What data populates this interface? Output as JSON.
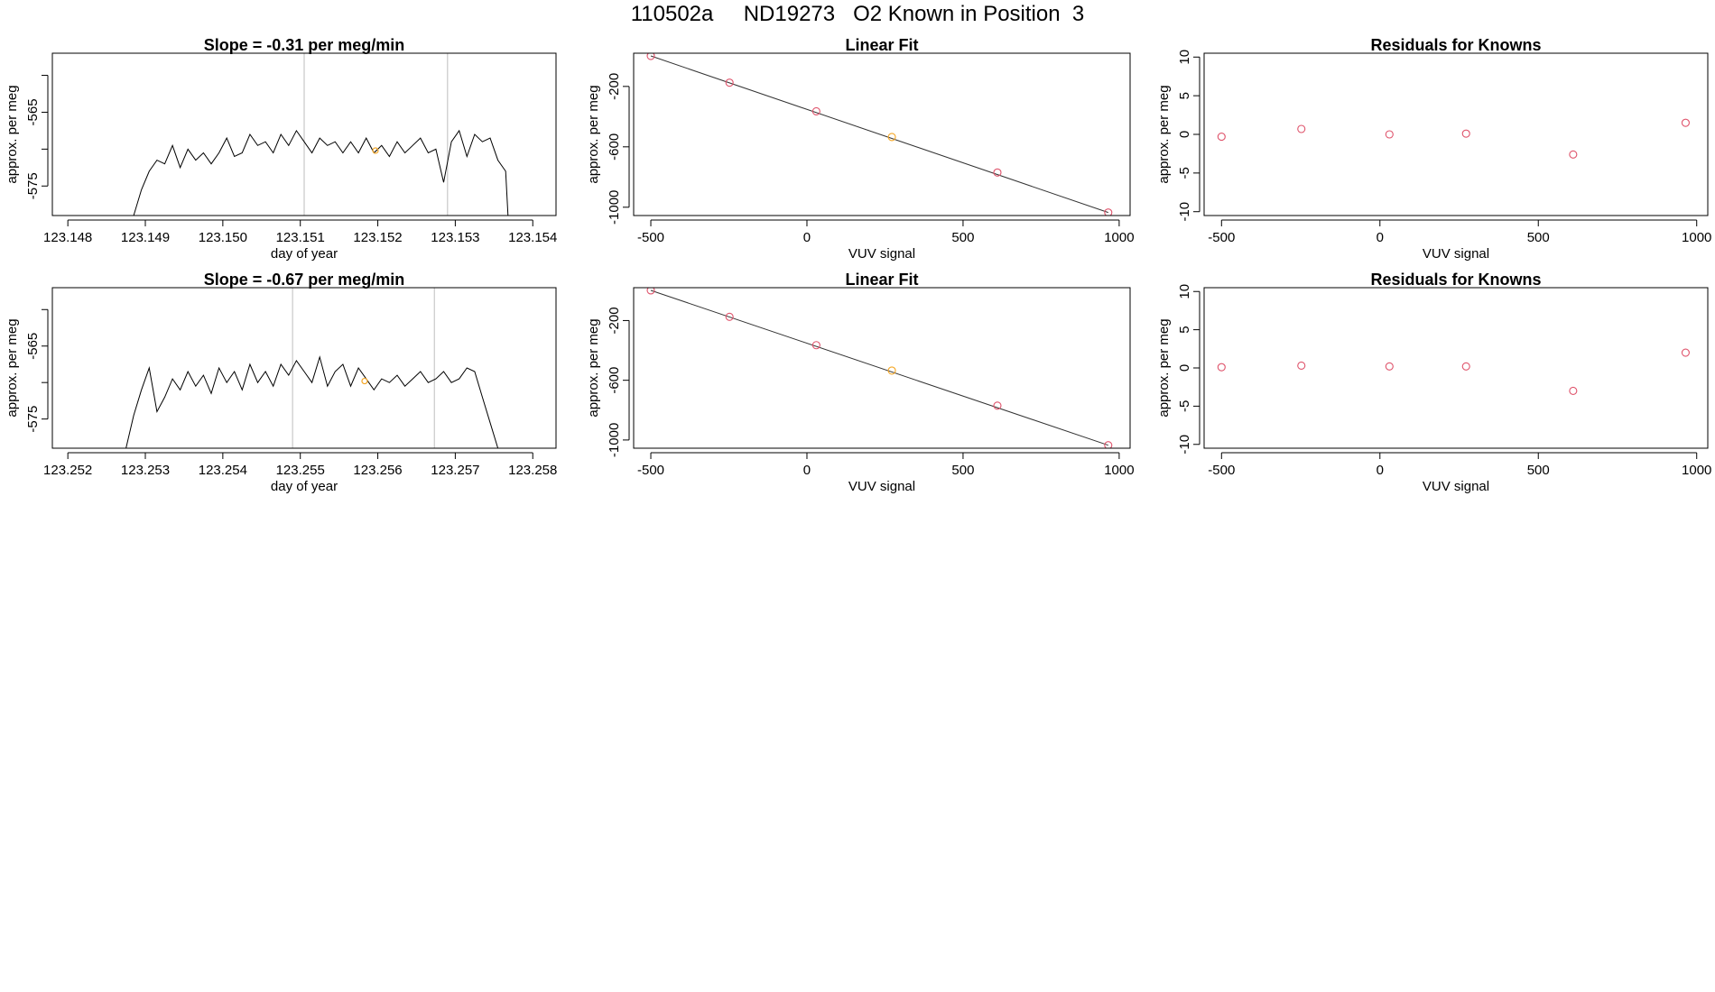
{
  "main_title": "110502a     ND19273   O2 Known in Position  3",
  "colors": {
    "line": "#000000",
    "grid": "#bebebe",
    "point_red": "#df536b",
    "point_orange": "#f5a623"
  },
  "chart_data": [
    {
      "id": "timeseries-1",
      "type": "line",
      "title": "Slope =  -0.31  per meg/min",
      "xlabel": "day of year",
      "ylabel": "approx. per meg",
      "xlim": [
        123.1478,
        123.1543
      ],
      "ylim": [
        -579,
        -557
      ],
      "xticks": [
        {
          "v": 123.148,
          "label": "123.148"
        },
        {
          "v": 123.149,
          "label": "123.149"
        },
        {
          "v": 123.15,
          "label": "123.150"
        },
        {
          "v": 123.151,
          "label": "123.151"
        },
        {
          "v": 123.152,
          "label": "123.152"
        },
        {
          "v": 123.153,
          "label": "123.153"
        },
        {
          "v": 123.154,
          "label": "123.154"
        }
      ],
      "yticks": [
        {
          "v": -560,
          "label": ""
        },
        {
          "v": -565,
          "label": "-565"
        },
        {
          "v": -570,
          "label": ""
        },
        {
          "v": -575,
          "label": "-575"
        }
      ],
      "vlines": [
        123.15105,
        123.1529
      ],
      "marker": {
        "x": 123.15197,
        "y": -570.2
      },
      "x": [
        123.14885,
        123.14895,
        123.14905,
        123.14915,
        123.14925,
        123.14935,
        123.14945,
        123.14955,
        123.14965,
        123.14975,
        123.14985,
        123.14995,
        123.15005,
        123.15015,
        123.15025,
        123.15035,
        123.15045,
        123.15055,
        123.15065,
        123.15075,
        123.15085,
        123.15095,
        123.15105,
        123.15115,
        123.15125,
        123.15135,
        123.15145,
        123.15155,
        123.15165,
        123.15175,
        123.15185,
        123.15195,
        123.15205,
        123.15215,
        123.15225,
        123.15235,
        123.15245,
        123.15255,
        123.15265,
        123.15275,
        123.15285,
        123.15295,
        123.15305,
        123.15315,
        123.15325,
        123.15335,
        123.15345,
        123.15355,
        123.15365,
        123.15368
      ],
      "y": [
        -579.0,
        -575.5,
        -573.0,
        -571.5,
        -572.0,
        -569.5,
        -572.5,
        -570.0,
        -571.5,
        -570.5,
        -572.0,
        -570.5,
        -568.5,
        -571.0,
        -570.5,
        -568.0,
        -569.5,
        -569.0,
        -570.5,
        -568.0,
        -569.5,
        -567.5,
        -569.0,
        -570.5,
        -568.5,
        -569.5,
        -569.0,
        -570.5,
        -569.0,
        -570.5,
        -568.5,
        -570.5,
        -569.5,
        -571.0,
        -569.0,
        -570.5,
        -569.5,
        -568.5,
        -570.5,
        -570.0,
        -574.5,
        -569.0,
        -567.5,
        -571.0,
        -568.0,
        -569.0,
        -568.5,
        -571.5,
        -573.0,
        -579.0
      ]
    },
    {
      "id": "linear-fit-1",
      "type": "scatter",
      "title": "Linear Fit",
      "xlabel": "VUV signal",
      "ylabel": "approx. per meg",
      "xlim": [
        -555,
        1035
      ],
      "ylim": [
        -1055,
        20
      ],
      "xticks": [
        {
          "v": -500,
          "label": "-500"
        },
        {
          "v": 0,
          "label": "0"
        },
        {
          "v": 500,
          "label": "500"
        },
        {
          "v": 1000,
          "label": "1000"
        }
      ],
      "yticks": [
        {
          "v": -200,
          "label": "-200"
        },
        {
          "v": -600,
          "label": "-600"
        },
        {
          "v": -1000,
          "label": "-1000"
        }
      ],
      "fit_line": {
        "x": [
          -500,
          965
        ],
        "y": [
          2,
          -1035
        ]
      },
      "points": [
        {
          "x": -500,
          "y": 2,
          "color": "red"
        },
        {
          "x": -248,
          "y": -175,
          "color": "red"
        },
        {
          "x": 30,
          "y": -365,
          "color": "red"
        },
        {
          "x": 272,
          "y": -535,
          "color": "orange"
        },
        {
          "x": 610,
          "y": -770,
          "color": "red"
        },
        {
          "x": 965,
          "y": -1035,
          "color": "red"
        }
      ]
    },
    {
      "id": "residuals-1",
      "type": "scatter",
      "title": "Residuals for Knowns",
      "xlabel": "VUV signal",
      "ylabel": "approx. per meg",
      "xlim": [
        -555,
        1035
      ],
      "ylim": [
        -10.5,
        10.5
      ],
      "xticks": [
        {
          "v": -500,
          "label": "-500"
        },
        {
          "v": 0,
          "label": "0"
        },
        {
          "v": 500,
          "label": "500"
        },
        {
          "v": 1000,
          "label": "1000"
        }
      ],
      "yticks": [
        {
          "v": -10,
          "label": "-10"
        },
        {
          "v": -5,
          "label": "-5"
        },
        {
          "v": 0,
          "label": "0"
        },
        {
          "v": 5,
          "label": "5"
        },
        {
          "v": 10,
          "label": "10"
        }
      ],
      "points": [
        {
          "x": -500,
          "y": -0.3,
          "color": "red"
        },
        {
          "x": -248,
          "y": 0.7,
          "color": "red"
        },
        {
          "x": 30,
          "y": 0.0,
          "color": "red"
        },
        {
          "x": 272,
          "y": 0.1,
          "color": "red"
        },
        {
          "x": 610,
          "y": -2.6,
          "color": "red"
        },
        {
          "x": 965,
          "y": 1.5,
          "color": "red"
        }
      ]
    },
    {
      "id": "timeseries-2",
      "type": "line",
      "title": "Slope =  -0.67  per meg/min",
      "xlabel": "day of year",
      "ylabel": "approx. per meg",
      "xlim": [
        123.2518,
        123.2583
      ],
      "ylim": [
        -579,
        -557
      ],
      "xticks": [
        {
          "v": 123.252,
          "label": "123.252"
        },
        {
          "v": 123.253,
          "label": "123.253"
        },
        {
          "v": 123.254,
          "label": "123.254"
        },
        {
          "v": 123.255,
          "label": "123.255"
        },
        {
          "v": 123.256,
          "label": "123.256"
        },
        {
          "v": 123.257,
          "label": "123.257"
        },
        {
          "v": 123.258,
          "label": "123.258"
        }
      ],
      "yticks": [
        {
          "v": -560,
          "label": ""
        },
        {
          "v": -565,
          "label": "-565"
        },
        {
          "v": -570,
          "label": ""
        },
        {
          "v": -575,
          "label": "-575"
        }
      ],
      "vlines": [
        123.2549,
        123.25673
      ],
      "marker": {
        "x": 123.25583,
        "y": -569.8
      },
      "x": [
        123.25275,
        123.25285,
        123.25295,
        123.25305,
        123.25315,
        123.25325,
        123.25335,
        123.25345,
        123.25355,
        123.25365,
        123.25375,
        123.25385,
        123.25395,
        123.25405,
        123.25415,
        123.25425,
        123.25435,
        123.25445,
        123.25455,
        123.25465,
        123.25475,
        123.25485,
        123.25495,
        123.25505,
        123.25515,
        123.25525,
        123.25535,
        123.25545,
        123.25555,
        123.25565,
        123.25575,
        123.25585,
        123.25595,
        123.25605,
        123.25615,
        123.25625,
        123.25635,
        123.25645,
        123.25655,
        123.25665,
        123.25675,
        123.25685,
        123.25695,
        123.25705,
        123.25715,
        123.25725,
        123.25735,
        123.25745,
        123.25755
      ],
      "y": [
        -579.0,
        -574.5,
        -571.0,
        -568.0,
        -574.0,
        -572.0,
        -569.5,
        -571.0,
        -568.5,
        -570.5,
        -569.0,
        -571.5,
        -568.0,
        -570.0,
        -568.5,
        -571.0,
        -567.5,
        -570.0,
        -568.5,
        -570.5,
        -567.5,
        -569.0,
        -567.0,
        -568.5,
        -570.0,
        -566.5,
        -570.5,
        -568.5,
        -567.5,
        -570.5,
        -568.0,
        -569.5,
        -571.0,
        -569.5,
        -570.0,
        -569.0,
        -570.5,
        -569.5,
        -568.5,
        -570.0,
        -569.5,
        -568.5,
        -570.0,
        -569.5,
        -568.0,
        -568.5,
        -572.0,
        -575.5,
        -579.0
      ]
    },
    {
      "id": "linear-fit-2",
      "type": "scatter",
      "title": "Linear Fit",
      "xlabel": "VUV signal",
      "ylabel": "approx. per meg",
      "xlim": [
        -555,
        1035
      ],
      "ylim": [
        -1055,
        20
      ],
      "xticks": [
        {
          "v": -500,
          "label": "-500"
        },
        {
          "v": 0,
          "label": "0"
        },
        {
          "v": 500,
          "label": "500"
        },
        {
          "v": 1000,
          "label": "1000"
        }
      ],
      "yticks": [
        {
          "v": -200,
          "label": "-200"
        },
        {
          "v": -600,
          "label": "-600"
        },
        {
          "v": -1000,
          "label": "-1000"
        }
      ],
      "fit_line": {
        "x": [
          -500,
          965
        ],
        "y": [
          2,
          -1035
        ]
      },
      "points": [
        {
          "x": -500,
          "y": 2,
          "color": "red"
        },
        {
          "x": -248,
          "y": -175,
          "color": "red"
        },
        {
          "x": 30,
          "y": -365,
          "color": "red"
        },
        {
          "x": 272,
          "y": -535,
          "color": "orange"
        },
        {
          "x": 610,
          "y": -770,
          "color": "red"
        },
        {
          "x": 965,
          "y": -1035,
          "color": "red"
        }
      ]
    },
    {
      "id": "residuals-2",
      "type": "scatter",
      "title": "Residuals for Knowns",
      "xlabel": "VUV signal",
      "ylabel": "approx. per meg",
      "xlim": [
        -555,
        1035
      ],
      "ylim": [
        -10.5,
        10.5
      ],
      "xticks": [
        {
          "v": -500,
          "label": "-500"
        },
        {
          "v": 0,
          "label": "0"
        },
        {
          "v": 500,
          "label": "500"
        },
        {
          "v": 1000,
          "label": "1000"
        }
      ],
      "yticks": [
        {
          "v": -10,
          "label": "-10"
        },
        {
          "v": -5,
          "label": "-5"
        },
        {
          "v": 0,
          "label": "0"
        },
        {
          "v": 5,
          "label": "5"
        },
        {
          "v": 10,
          "label": "10"
        }
      ],
      "points": [
        {
          "x": -500,
          "y": 0.1,
          "color": "red"
        },
        {
          "x": -248,
          "y": 0.3,
          "color": "red"
        },
        {
          "x": 30,
          "y": 0.2,
          "color": "red"
        },
        {
          "x": 272,
          "y": 0.2,
          "color": "red"
        },
        {
          "x": 610,
          "y": -3.0,
          "color": "red"
        },
        {
          "x": 965,
          "y": 2.0,
          "color": "red"
        }
      ]
    }
  ]
}
